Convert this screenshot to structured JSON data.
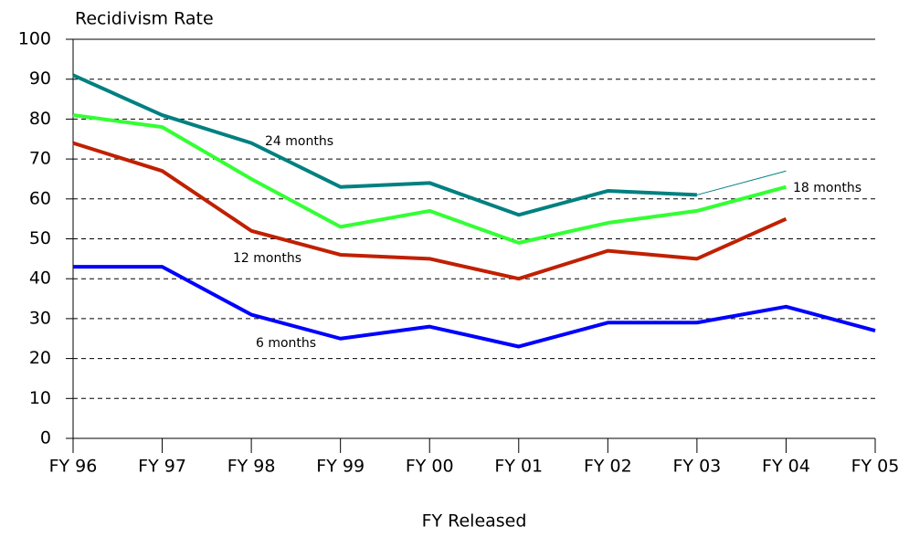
{
  "chart_data": {
    "type": "line",
    "y_label": "Recidivism Rate",
    "x_label": "FY Released",
    "categories": [
      "FY 96",
      "FY 97",
      "FY 98",
      "FY 99",
      "FY 00",
      "FY 01",
      "FY 02",
      "FY 03",
      "FY 04",
      "FY 05"
    ],
    "series": [
      {
        "name": "24 months",
        "color": "#008080",
        "line_width": 4,
        "values": [
          91,
          81,
          74,
          63,
          64,
          56,
          62,
          61,
          null,
          null
        ]
      },
      {
        "color": "#008080",
        "line_width": 1,
        "values": [
          null,
          null,
          null,
          null,
          null,
          null,
          null,
          61,
          67,
          null
        ]
      },
      {
        "name": "18 months",
        "color": "#33ff33",
        "line_width": 4,
        "values": [
          81,
          78,
          65,
          53,
          57,
          49,
          54,
          57,
          63,
          null
        ]
      },
      {
        "name": "12 months",
        "color": "#c02000",
        "line_width": 4,
        "values": [
          74,
          67,
          52,
          46,
          45,
          40,
          47,
          45,
          55,
          null
        ]
      },
      {
        "name": "6 months",
        "color": "#0000ff",
        "line_width": 4,
        "values": [
          43,
          43,
          31,
          25,
          28,
          23,
          29,
          29,
          33,
          27
        ]
      }
    ],
    "ylim": [
      0,
      100
    ],
    "yticks": [
      0,
      10,
      20,
      30,
      40,
      50,
      60,
      70,
      80,
      90,
      100
    ],
    "grid": true
  }
}
